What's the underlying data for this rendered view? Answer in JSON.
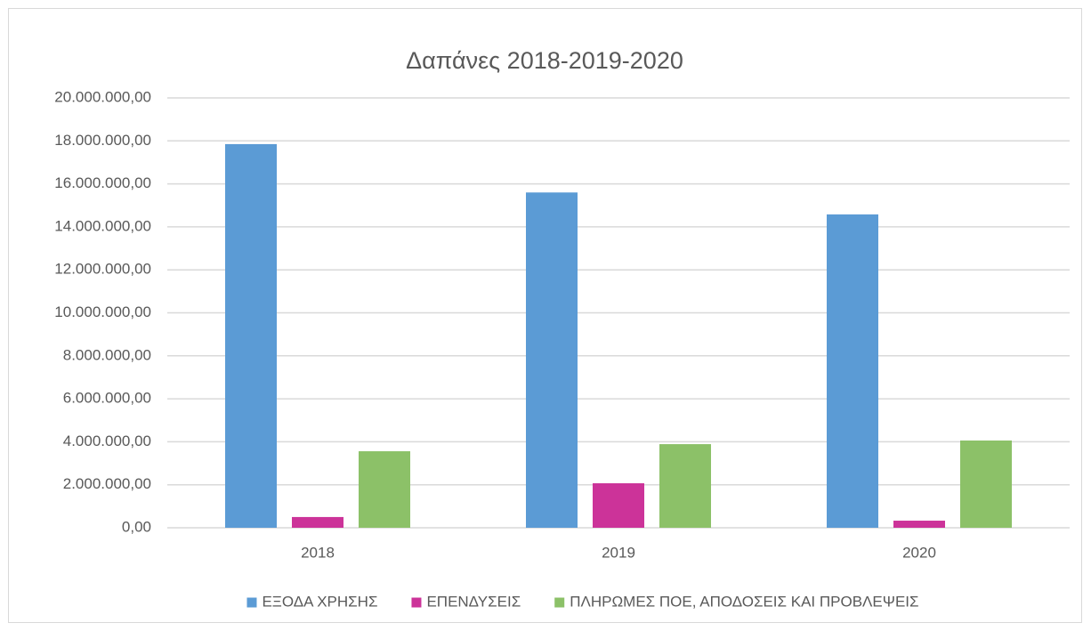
{
  "chart_data": {
    "type": "bar",
    "title": "Δαπάνες 2018-2019-2020",
    "categories": [
      "2018",
      "2019",
      "2020"
    ],
    "series": [
      {
        "name": "ΕΞΟΔΑ ΧΡΗΣΗΣ",
        "color": "#5b9bd5",
        "values": [
          17850000,
          15600000,
          14580000
        ]
      },
      {
        "name": "ΕΠΕΝΔΥΣΕΙΣ",
        "color": "#cc3399",
        "values": [
          500000,
          2070000,
          330000
        ]
      },
      {
        "name": "ΠΛΗΡΩΜΕΣ ΠΟΕ, ΑΠΟΔΟΣΕΙΣ ΚΑΙ ΠΡΟΒΛΕΨΕΙΣ",
        "color": "#8cc168",
        "values": [
          3560000,
          3890000,
          4060000
        ]
      }
    ],
    "ylim": [
      0,
      20000000
    ],
    "yticks": [
      {
        "value": 0,
        "label": "0,00"
      },
      {
        "value": 2000000,
        "label": "2.000.000,00"
      },
      {
        "value": 4000000,
        "label": "4.000.000,00"
      },
      {
        "value": 6000000,
        "label": "6.000.000,00"
      },
      {
        "value": 8000000,
        "label": "8.000.000,00"
      },
      {
        "value": 10000000,
        "label": "10.000.000,00"
      },
      {
        "value": 12000000,
        "label": "12.000.000,00"
      },
      {
        "value": 14000000,
        "label": "14.000.000,00"
      },
      {
        "value": 16000000,
        "label": "16.000.000,00"
      },
      {
        "value": 18000000,
        "label": "18.000.000,00"
      },
      {
        "value": 20000000,
        "label": "20.000.000,00"
      }
    ],
    "grid": true,
    "legend": "bottom"
  }
}
